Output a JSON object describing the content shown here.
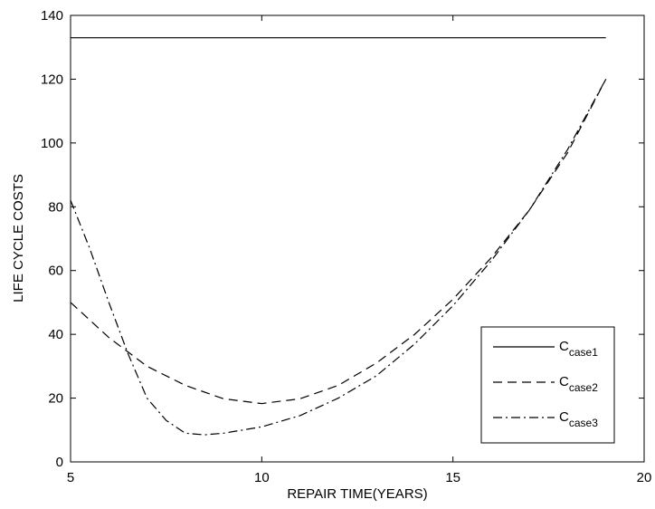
{
  "chart_data": {
    "type": "line",
    "title": "",
    "xlabel": "REPAIR TIME(YEARS)",
    "ylabel": "LIFE CYCLE COSTS",
    "xlim": [
      5,
      20
    ],
    "ylim": [
      0,
      140
    ],
    "xticks": [
      5,
      10,
      15,
      20
    ],
    "yticks": [
      0,
      20,
      40,
      60,
      80,
      100,
      120,
      140
    ],
    "grid": false,
    "legend_position": "bottom-right",
    "series": [
      {
        "name": "C",
        "name_subscript": "case1",
        "line_style": "solid",
        "color": "#000000",
        "x": [
          5,
          19
        ],
        "y": [
          133,
          133
        ]
      },
      {
        "name": "C",
        "name_subscript": "case2",
        "line_style": "dashed",
        "color": "#000000",
        "x": [
          5,
          6,
          7,
          8,
          9,
          10,
          11,
          12,
          13,
          14,
          15,
          16,
          17,
          18,
          19
        ],
        "y": [
          50,
          39,
          30,
          24,
          19.8,
          18.3,
          19.8,
          24,
          31,
          40,
          51,
          64,
          79,
          97,
          120
        ]
      },
      {
        "name": "C",
        "name_subscript": "case3",
        "line_style": "dash-dot",
        "color": "#000000",
        "x": [
          5,
          5.5,
          6,
          6.5,
          7,
          7.5,
          8,
          8.5,
          9,
          10,
          11,
          12,
          13,
          14,
          15,
          16,
          17,
          18,
          19
        ],
        "y": [
          82,
          67,
          50,
          34,
          20,
          13,
          9,
          8.5,
          9,
          11,
          14.5,
          20,
          27,
          37,
          49,
          63,
          79,
          98,
          120
        ]
      }
    ]
  }
}
